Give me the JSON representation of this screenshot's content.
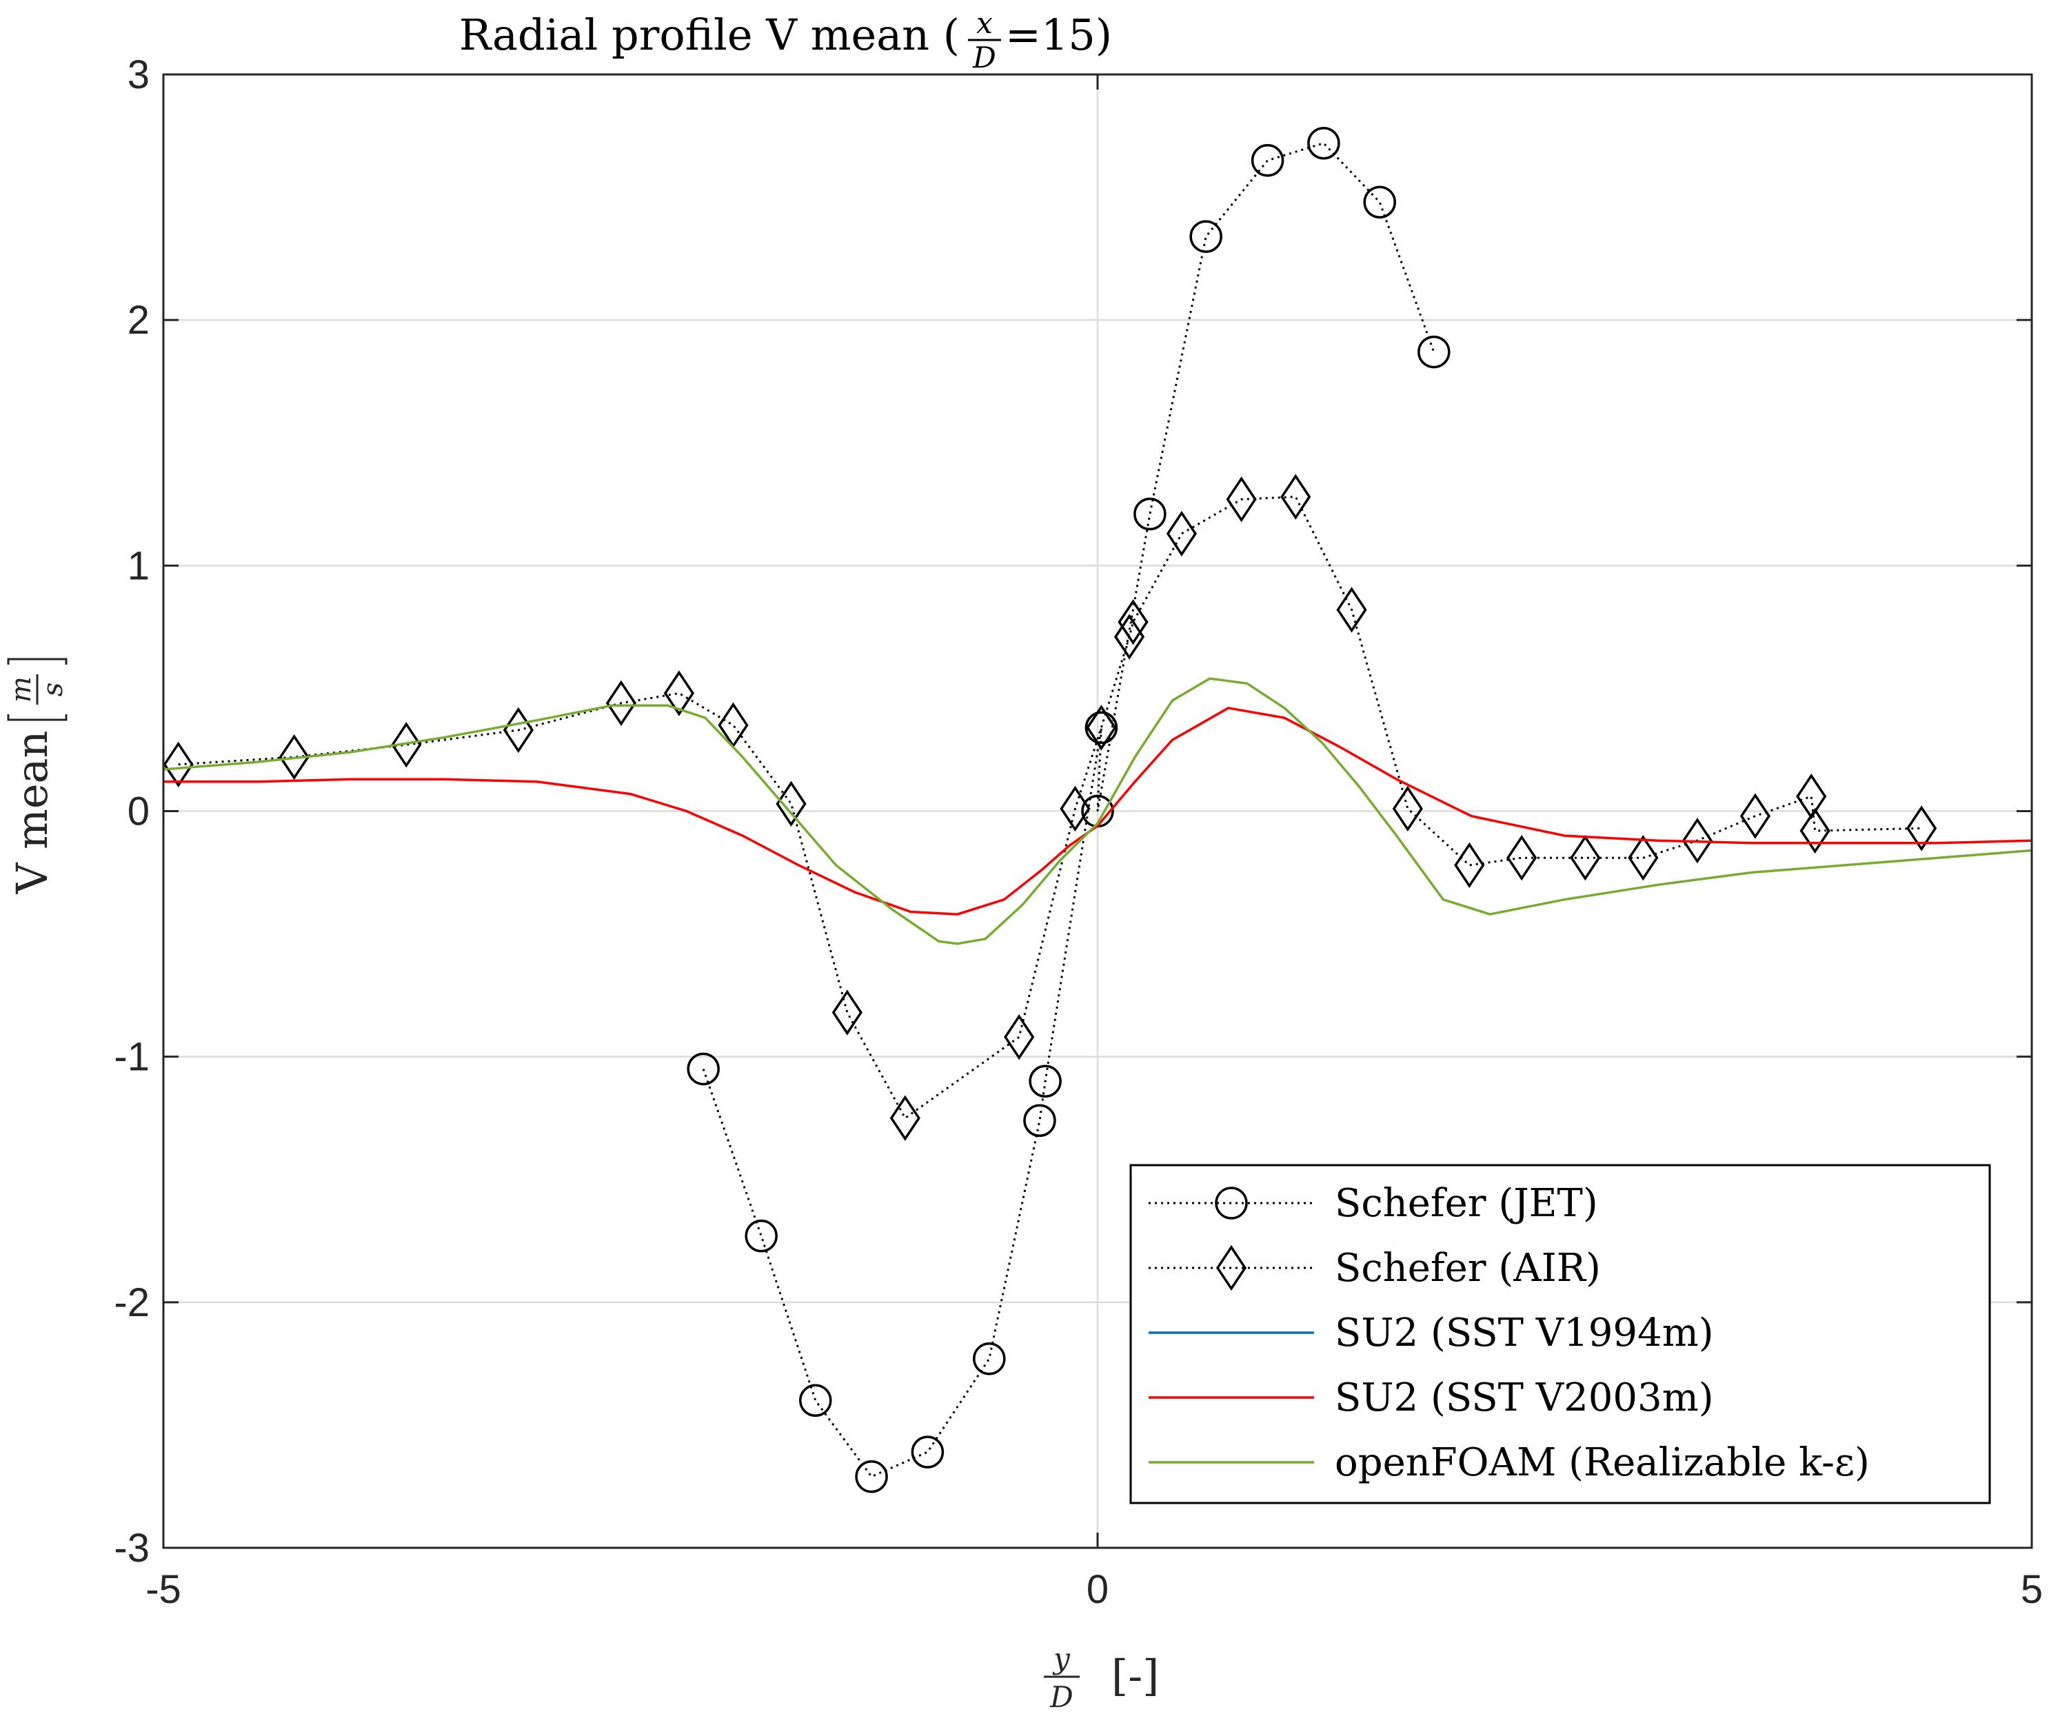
{
  "chart_data": {
    "type": "line",
    "title": "Radial profile V mean (x/D=15)",
    "xlabel": "y/D [-]",
    "ylabel": "V mean [m/s]",
    "xlim": [
      -5,
      5
    ],
    "ylim": [
      -3,
      3
    ],
    "xticks": [
      -5,
      0,
      5
    ],
    "yticks": [
      -3,
      -2,
      -1,
      0,
      1,
      2,
      3
    ],
    "grid": true,
    "legend_position": "bottom-right",
    "series": [
      {
        "name": "Schefer (JET)",
        "color": "#000000",
        "line_style": "dotted",
        "marker": "circle",
        "x": [
          -2.11,
          -1.8,
          -1.51,
          -1.21,
          -0.91,
          -0.58,
          -0.31,
          -0.28,
          0.02,
          0.0,
          0.28,
          0.58,
          0.91,
          1.21,
          1.51,
          1.8
        ],
        "y": [
          -1.05,
          -1.73,
          -2.4,
          -2.71,
          -2.61,
          -2.23,
          -1.26,
          -1.1,
          0.34,
          0.0,
          1.21,
          2.34,
          2.65,
          2.72,
          2.48,
          1.87
        ]
      },
      {
        "name": "Schefer (AIR)",
        "color": "#000000",
        "line_style": "dotted",
        "marker": "diamond",
        "x": [
          -4.92,
          -4.3,
          -3.7,
          -3.1,
          -2.55,
          -2.24,
          -1.95,
          -1.64,
          -1.34,
          -1.03,
          -0.42,
          -0.12,
          0.02,
          0.17,
          0.19,
          0.45,
          0.77,
          1.06,
          1.36,
          1.66,
          1.99,
          2.27,
          2.61,
          2.92,
          3.21,
          3.52,
          3.82,
          3.84,
          4.41
        ],
        "y": [
          0.19,
          0.22,
          0.27,
          0.33,
          0.44,
          0.48,
          0.35,
          0.03,
          -0.82,
          -1.25,
          -0.92,
          0.01,
          0.34,
          0.71,
          0.77,
          1.13,
          1.27,
          1.28,
          0.82,
          0.01,
          -0.22,
          -0.19,
          -0.19,
          -0.19,
          -0.12,
          -0.02,
          0.06,
          -0.08,
          -0.07
        ]
      },
      {
        "name": "SU2 (SST V1994m)",
        "color": "#0072BD",
        "line_style": "solid",
        "marker": "none",
        "x": [],
        "y": []
      },
      {
        "name": "SU2 (SST V2003m)",
        "color": "#FF0000",
        "line_style": "solid",
        "marker": "none",
        "x": [
          -5,
          -4.5,
          -4,
          -3.5,
          -3,
          -2.5,
          -2.2,
          -1.9,
          -1.6,
          -1.3,
          -1.0,
          -0.75,
          -0.5,
          -0.3,
          -0.15,
          0,
          0.2,
          0.4,
          0.7,
          1.0,
          1.3,
          1.6,
          2.0,
          2.5,
          3.0,
          3.5,
          4.0,
          4.5,
          5.0
        ],
        "y": [
          0.12,
          0.12,
          0.13,
          0.13,
          0.12,
          0.07,
          0.0,
          -0.1,
          -0.22,
          -0.33,
          -0.41,
          -0.42,
          -0.36,
          -0.24,
          -0.14,
          -0.06,
          0.12,
          0.29,
          0.42,
          0.38,
          0.26,
          0.13,
          -0.02,
          -0.1,
          -0.12,
          -0.13,
          -0.13,
          -0.13,
          -0.12
        ]
      },
      {
        "name": "openFOAM (Realizable k-ε)",
        "color": "#77AC30",
        "line_style": "solid",
        "marker": "none",
        "x": [
          -5,
          -4.5,
          -4,
          -3.5,
          -3,
          -2.6,
          -2.3,
          -2.1,
          -1.9,
          -1.65,
          -1.4,
          -1.1,
          -0.85,
          -0.75,
          -0.6,
          -0.4,
          -0.2,
          0,
          0.2,
          0.4,
          0.6,
          0.8,
          1.0,
          1.2,
          1.4,
          1.6,
          1.85,
          2.1,
          2.5,
          3.0,
          3.5,
          4.0,
          4.5,
          5.0
        ],
        "y": [
          0.17,
          0.2,
          0.24,
          0.3,
          0.37,
          0.43,
          0.43,
          0.38,
          0.22,
          0.0,
          -0.22,
          -0.4,
          -0.53,
          -0.54,
          -0.52,
          -0.38,
          -0.2,
          -0.05,
          0.22,
          0.45,
          0.54,
          0.52,
          0.42,
          0.28,
          0.1,
          -0.1,
          -0.36,
          -0.42,
          -0.36,
          -0.3,
          -0.25,
          -0.22,
          -0.19,
          -0.16
        ]
      }
    ]
  },
  "labels": {
    "title_main": "Radial profile V mean (",
    "title_num": "x",
    "title_den": "D",
    "title_tail": "=15)",
    "ylabel_text": "V mean",
    "ylabel_num": "m",
    "ylabel_den": "s",
    "xlabel_num": "y",
    "xlabel_den": "D",
    "xlabel_unit": "[-]"
  }
}
